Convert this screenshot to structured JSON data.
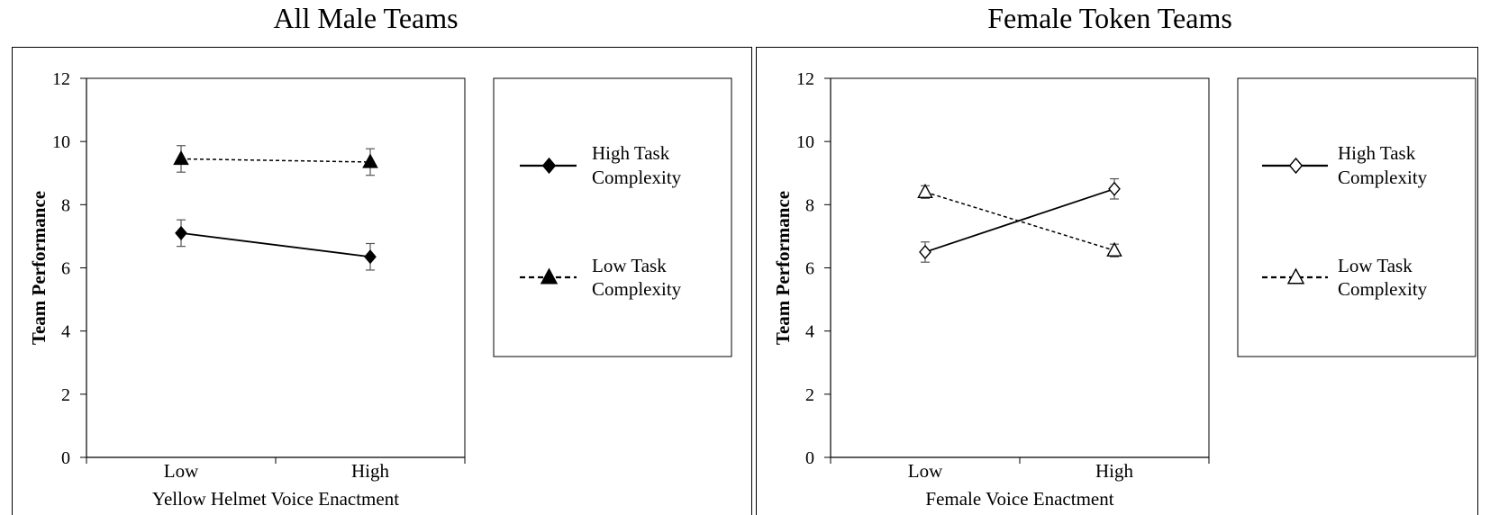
{
  "chart_data": [
    {
      "type": "line",
      "title": "All Male Teams",
      "xlabel": "Yellow Helmet Voice Enactment",
      "ylabel": "Team Performance",
      "categories": [
        "Low",
        "High"
      ],
      "ylim": [
        0,
        12
      ],
      "yticks": [
        "0",
        "2",
        "4",
        "6",
        "8",
        "10",
        "12"
      ],
      "grid": false,
      "legend_position": "right",
      "series": [
        {
          "name_lines": [
            "High Task",
            "Complexity"
          ],
          "values": [
            7.1,
            6.35
          ],
          "error": [
            0.42,
            0.42
          ],
          "marker": "diamond",
          "fill": "#000000",
          "line_style": "solid"
        },
        {
          "name_lines": [
            "Low Task",
            "Complexity"
          ],
          "values": [
            9.45,
            9.35
          ],
          "error": [
            0.42,
            0.42
          ],
          "marker": "triangle",
          "fill": "#000000",
          "line_style": "dashed"
        }
      ]
    },
    {
      "type": "line",
      "title": "Female Token Teams",
      "xlabel": "Female Voice Enactment",
      "ylabel": "Team Performance",
      "categories": [
        "Low",
        "High"
      ],
      "ylim": [
        0,
        12
      ],
      "yticks": [
        "0",
        "2",
        "4",
        "6",
        "8",
        "10",
        "12"
      ],
      "grid": false,
      "legend_position": "right",
      "series": [
        {
          "name_lines": [
            "High Task",
            "Complexity"
          ],
          "values": [
            6.5,
            8.5
          ],
          "error": [
            0.32,
            0.32
          ],
          "marker": "diamond",
          "fill": "#ffffff",
          "line_style": "solid"
        },
        {
          "name_lines": [
            "Low Task",
            "Complexity"
          ],
          "values": [
            8.4,
            6.55
          ],
          "error": [
            0.2,
            0.2
          ],
          "marker": "triangle",
          "fill": "#ffffff",
          "line_style": "dashed"
        }
      ]
    }
  ]
}
